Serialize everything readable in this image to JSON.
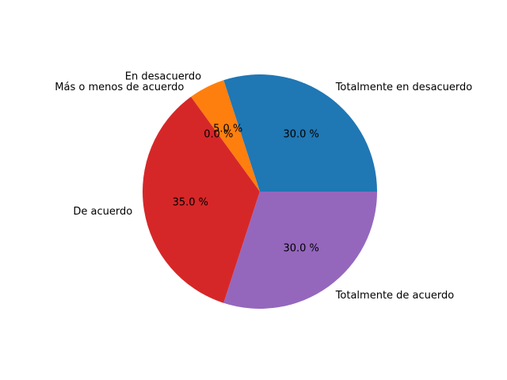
{
  "chart_data": {
    "type": "pie",
    "labels": [
      "Totalmente en desacuerdo",
      "En desacuerdo",
      "Más o menos de acuerdo",
      "De acuerdo",
      "Totalmente de acuerdo"
    ],
    "values": [
      30,
      5,
      0,
      35,
      30
    ],
    "percent_labels": [
      "30.0 %",
      "5.0 %",
      "0.0 %",
      "35.0 %",
      "30.0 %"
    ],
    "colors": [
      "#1f77b4",
      "#ff7f0e",
      "#2ca02c",
      "#d62728",
      "#9467bd"
    ],
    "start_angle_deg": 0,
    "direction": "counterclockwise",
    "legend": "none"
  }
}
